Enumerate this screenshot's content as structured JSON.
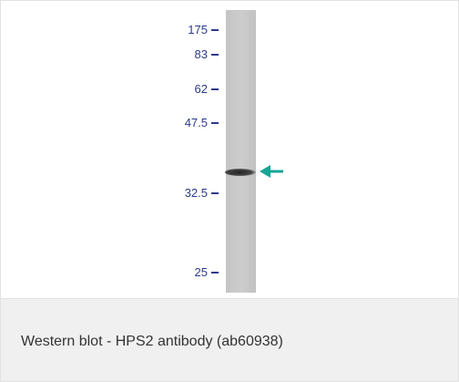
{
  "blot": {
    "markers": [
      "175",
      "83",
      "62",
      "47.5",
      "32.5",
      "25"
    ]
  },
  "caption": "Western blot - HPS2 antibody (ab60938)"
}
